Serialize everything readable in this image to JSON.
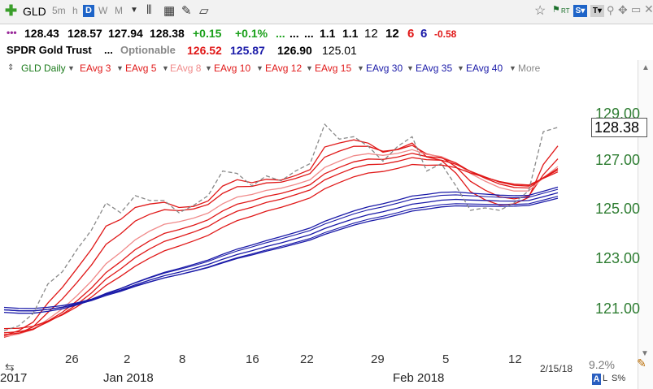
{
  "toolbar": {
    "symbol": "GLD",
    "timeframes": [
      "5m",
      "h",
      "D",
      "W",
      "M"
    ],
    "selected_timeframe": "D"
  },
  "quote": {
    "open": "128.43",
    "high": "128.57",
    "low": "127.94",
    "close": "128.38",
    "change": "+0.15",
    "change_pct": "+0.1%",
    "dots1": "...",
    "dots2": "...",
    "dots3": "...",
    "val1": "1.1",
    "val2": "1.1",
    "val3": "12",
    "val4": "12",
    "val5": "6",
    "val6": "6",
    "val7": "-0.58"
  },
  "info": {
    "name": "SPDR Gold Trust",
    "dots": "...",
    "optionable": "Optionable",
    "v1": "126.52",
    "v2": "125.87",
    "v3": "126.90",
    "v4": "125.01"
  },
  "legend": {
    "main": "GLD Daily",
    "items": [
      "EAvg 3",
      "EAvg 5",
      "EAvg 8",
      "EAvg 10",
      "EAvg 12",
      "EAvg 15",
      "EAvg 30",
      "EAvg 35",
      "EAvg 40"
    ],
    "more": "More"
  },
  "colors": {
    "red": "#e01818",
    "pink": "#f08a8a",
    "blue": "#1a1aa8",
    "green_axis": "#2e7d32",
    "gray_dash": "#888888"
  },
  "chart_data": {
    "type": "line",
    "x": [
      "2017-12-20",
      "2017-12-21",
      "2017-12-22",
      "2017-12-26",
      "2017-12-27",
      "2017-12-28",
      "2017-12-29",
      "2018-01-02",
      "2018-01-03",
      "2018-01-04",
      "2018-01-05",
      "2018-01-08",
      "2018-01-09",
      "2018-01-10",
      "2018-01-11",
      "2018-01-12",
      "2018-01-16",
      "2018-01-17",
      "2018-01-18",
      "2018-01-19",
      "2018-01-22",
      "2018-01-23",
      "2018-01-24",
      "2018-01-25",
      "2018-01-26",
      "2018-01-29",
      "2018-01-30",
      "2018-01-31",
      "2018-02-01",
      "2018-02-02",
      "2018-02-05",
      "2018-02-06",
      "2018-02-07",
      "2018-02-08",
      "2018-02-09",
      "2018-02-12",
      "2018-02-13",
      "2018-02-14",
      "2018-02-15"
    ],
    "ylim": [
      119.5,
      129.5
    ],
    "yticks": [
      "121.00",
      "123.00",
      "125.00",
      "127.00",
      "129.00"
    ],
    "current_price": "128.38",
    "x_tick_labels": [
      "26",
      "2",
      "8",
      "16",
      "22",
      "29",
      "5",
      "12"
    ],
    "x_month_labels": [
      "2017",
      "Jan 2018",
      "Feb 2018"
    ],
    "series": [
      {
        "name": "GLD Daily",
        "values": [
          120.1,
          120.3,
          120.8,
          122.0,
          122.5,
          123.4,
          124.2,
          125.3,
          124.9,
          125.6,
          125.4,
          125.4,
          124.9,
          125.2,
          125.6,
          126.6,
          126.5,
          126.0,
          126.4,
          126.2,
          126.6,
          126.9,
          128.5,
          127.9,
          128.0,
          127.6,
          127.0,
          127.6,
          128.0,
          126.6,
          126.9,
          126.0,
          125.0,
          125.1,
          125.0,
          125.3,
          125.8,
          128.2,
          128.38
        ]
      },
      {
        "name": "EAvg 3",
        "values": [
          119.8,
          120.0,
          120.4,
          121.2,
          121.9,
          122.6,
          123.4,
          124.3,
          124.6,
          125.1,
          125.3,
          125.3,
          125.1,
          125.1,
          125.3,
          125.9,
          126.2,
          126.1,
          126.3,
          126.2,
          126.4,
          126.7,
          127.6,
          127.7,
          127.8,
          127.7,
          127.4,
          127.5,
          127.7,
          127.2,
          127.0,
          126.5,
          125.8,
          125.4,
          125.2,
          125.3,
          125.5,
          126.8,
          127.6
        ]
      }
    ]
  },
  "bottom": {
    "date": "2/15/18",
    "pct": "9.2%",
    "a_label": "A",
    "l_label": "L",
    "s_label": "S%"
  }
}
